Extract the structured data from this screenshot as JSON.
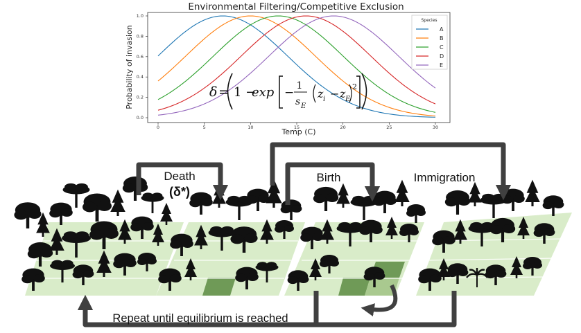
{
  "chart_data": {
    "type": "line",
    "title": "Environmental Filtering/Competitive Exclusion",
    "xlabel": "Temp (C)",
    "ylabel": "Probability of invasion",
    "xlim": [
      0,
      30
    ],
    "ylim": [
      0,
      1
    ],
    "xticks": [
      0,
      5,
      10,
      15,
      20,
      25,
      30
    ],
    "yticks": [
      0.0,
      0.2,
      0.4,
      0.6,
      0.8,
      1.0
    ],
    "tick_labels_y": [
      "0.0",
      "0.2",
      "0.4",
      "0.6",
      "0.8",
      "1.0"
    ],
    "legend_title": "Species",
    "legend_position": "right",
    "sigma": 7.0,
    "series": [
      {
        "name": "A",
        "optimum": 7,
        "color": "#1f77b4"
      },
      {
        "name": "B",
        "optimum": 10,
        "color": "#ff7f0e"
      },
      {
        "name": "C",
        "optimum": 13,
        "color": "#2ca02c"
      },
      {
        "name": "D",
        "optimum": 16,
        "color": "#d62728"
      },
      {
        "name": "E",
        "optimum": 19,
        "color": "#9467bd"
      }
    ]
  },
  "formula": {
    "delta": "δ",
    "equals": "=",
    "one_minus": "1 −",
    "exp": "exp",
    "minus": "−",
    "numerator": "1",
    "s": "s",
    "s_sub": "E",
    "z1": "z",
    "z1_sub": "i",
    "z_minus": "−",
    "z2": "z",
    "z2_sub": "E",
    "power": "2"
  },
  "steps": {
    "death": "Death",
    "death_symbol": "(δ*)",
    "birth": "Birth",
    "immigration": "Immigration",
    "repeat": "Repeat until equilibrium is reached"
  },
  "colors": {
    "plot_tile": "#d9ecc9",
    "highlight_tile": "#6f9a57",
    "highlight_light": "#a9c98f",
    "arrow": "#404040",
    "tree": "#111111"
  }
}
